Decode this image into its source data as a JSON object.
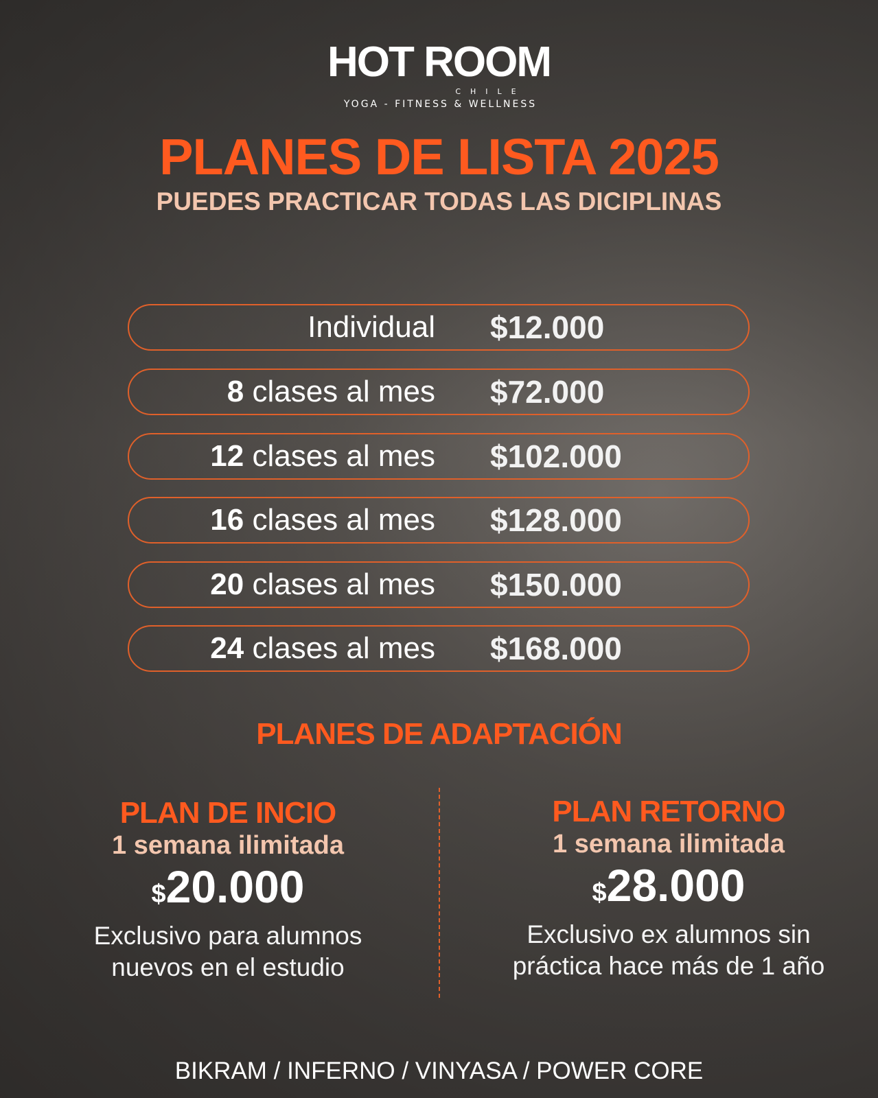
{
  "brand": {
    "logo_text": "HOT ROOM",
    "logo_sub": "CHILE",
    "tagline": "YOGA - FITNESS & WELLNESS"
  },
  "title": "PLANES DE LISTA 2025",
  "subtitle": "PUEDES PRACTICAR TODAS LAS DICIPLINAS",
  "plans": [
    {
      "count": "",
      "label": "Individual",
      "price": "$12.000"
    },
    {
      "count": "8",
      "label": "clases al mes",
      "price": "$72.000"
    },
    {
      "count": "12",
      "label": "clases al mes",
      "price": "$102.000"
    },
    {
      "count": "16",
      "label": "clases al mes",
      "price": "$128.000"
    },
    {
      "count": "20",
      "label": "clases al mes",
      "price": "$150.000"
    },
    {
      "count": "24",
      "label": "clases al mes",
      "price": "$168.000"
    }
  ],
  "adaptation": {
    "title": "PLANES DE ADAPTACIÓN",
    "plans": [
      {
        "name": "PLAN DE INCIO",
        "duration": "1 semana ilimitada",
        "currency": "$",
        "amount": "20.000",
        "desc1": "Exclusivo para alumnos",
        "desc2": "nuevos en el estudio"
      },
      {
        "name": "PLAN RETORNO",
        "duration": "1 semana ilimitada",
        "currency": "$",
        "amount": "28.000",
        "desc1": "Exclusivo ex alumnos sin",
        "desc2": "práctica hace más de 1 año"
      }
    ]
  },
  "footer": "BIKRAM / INFERNO / VINYASA / POWER CORE",
  "colors": {
    "accent": "#ff5a1f",
    "subtitle": "#f3c6ae",
    "border": "#e0602a"
  }
}
